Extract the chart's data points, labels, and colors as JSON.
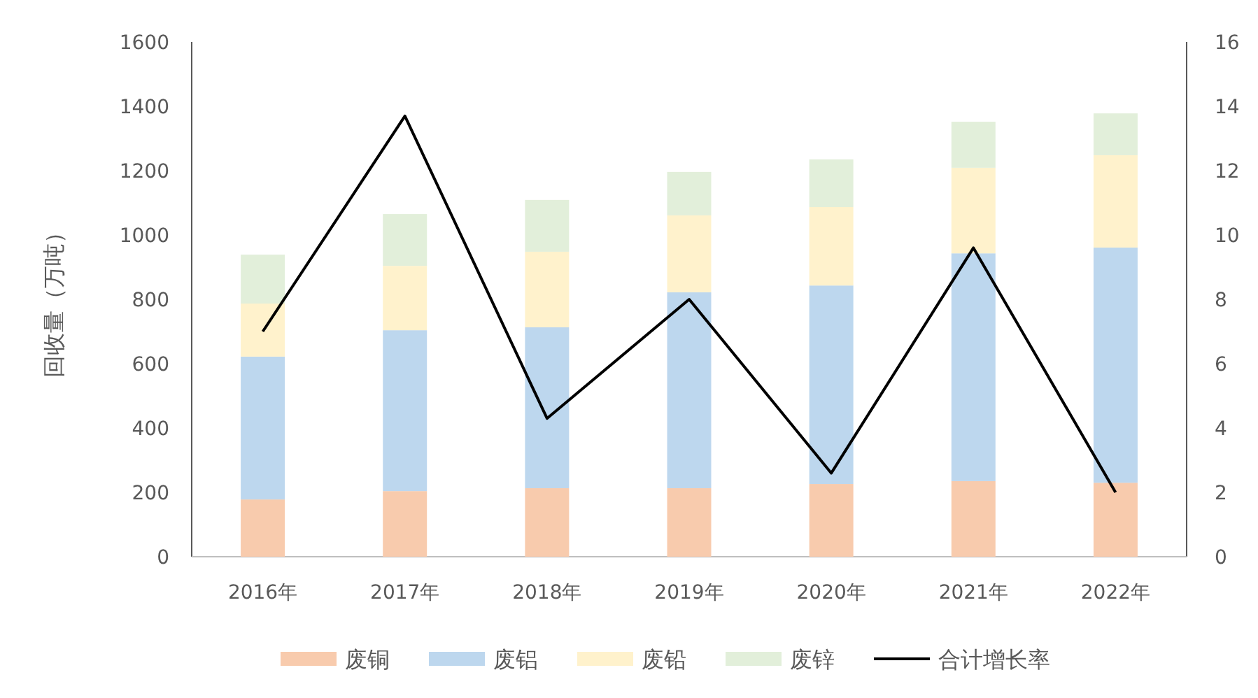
{
  "chart_data": {
    "type": "bar",
    "stacked": true,
    "ylabel": "回收量（万吨）",
    "categories": [
      "2016年",
      "2017年",
      "2018年",
      "2019年",
      "2020年",
      "2021年",
      "2022年"
    ],
    "series": [
      {
        "name": "废铜",
        "color": "#f8cbad",
        "values": [
          178,
          204,
          213,
          213,
          226,
          235,
          230
        ]
      },
      {
        "name": "废铝",
        "color": "#bdd7ee",
        "values": [
          444,
          500,
          500,
          609,
          617,
          708,
          731
        ]
      },
      {
        "name": "废铅",
        "color": "#fff2cc",
        "values": [
          165,
          200,
          235,
          239,
          244,
          266,
          287
        ]
      },
      {
        "name": "废锌",
        "color": "#e2efda",
        "values": [
          152,
          161,
          161,
          135,
          148,
          143,
          130
        ]
      },
      {
        "name": "合计增长率",
        "type": "line",
        "axis": "y2",
        "color": "#000000",
        "values": [
          7.0,
          13.7,
          4.3,
          8.0,
          2.6,
          9.6,
          2.0
        ]
      }
    ],
    "ylim": [
      0,
      1600
    ],
    "yticks": [
      0,
      200,
      400,
      600,
      800,
      1000,
      1200,
      1400,
      1600
    ],
    "y2lim": [
      0,
      16
    ],
    "y2ticks": [
      0,
      2,
      4,
      6,
      8,
      10,
      12,
      14,
      16
    ],
    "grid": false,
    "legend": "bottom"
  }
}
